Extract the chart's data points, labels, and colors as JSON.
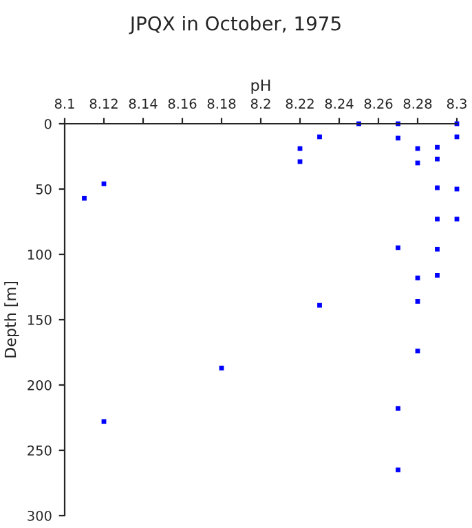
{
  "chart_data": {
    "type": "scatter",
    "title": "JPQX in October, 1975",
    "xlabel": "pH",
    "ylabel": "Depth [m]",
    "x": [
      8.11,
      8.12,
      8.22,
      8.22,
      8.23,
      8.25,
      8.27,
      8.27,
      8.28,
      8.28,
      8.29,
      8.29,
      8.29,
      8.29,
      8.3,
      8.3,
      8.3,
      8.3,
      8.27,
      8.29,
      8.29,
      8.28,
      8.28,
      8.28,
      8.23,
      8.18,
      8.12,
      8.27,
      8.27
    ],
    "values": [
      57,
      46,
      19,
      29,
      10,
      0,
      0,
      11,
      19,
      30,
      18,
      27,
      49,
      73,
      0,
      10,
      50,
      73,
      95,
      96,
      116,
      118,
      136,
      174,
      139,
      187,
      228,
      218,
      265
    ],
    "color": "#0000ff",
    "marker": "square",
    "xlim": [
      8.1,
      8.3
    ],
    "xticks": [
      8.1,
      8.12,
      8.14,
      8.16,
      8.18,
      8.2,
      8.22,
      8.24,
      8.26,
      8.28,
      8.3
    ],
    "ylim": [
      300,
      0
    ],
    "yticks": [
      0,
      50,
      100,
      150,
      200,
      250,
      300
    ],
    "grid": false
  }
}
